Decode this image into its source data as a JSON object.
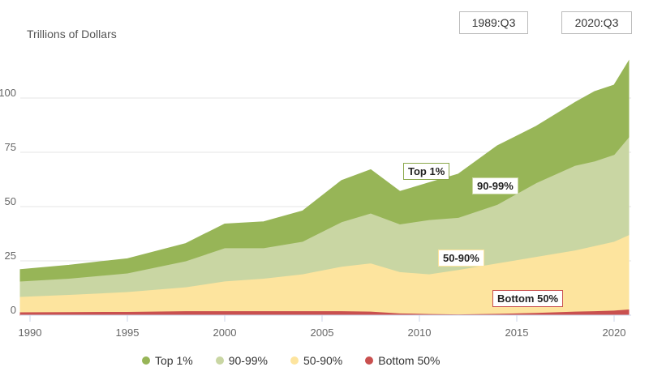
{
  "header": {
    "units_label": "Trillions of Dollars",
    "start_date": "1989:Q3",
    "end_date": "2020:Q3"
  },
  "chart_data": {
    "type": "area",
    "stacked": true,
    "title": "",
    "xlabel": "",
    "ylabel": "Trillions of Dollars",
    "xlim": [
      1989.5,
      2020.75
    ],
    "ylim": [
      0,
      120
    ],
    "x_ticks": [
      1990,
      1995,
      2000,
      2005,
      2010,
      2015,
      2020
    ],
    "y_ticks": [
      0,
      25,
      50,
      75,
      100
    ],
    "grid": true,
    "x": [
      1989.5,
      1992,
      1995,
      1998,
      2000,
      2002,
      2004,
      2006,
      2007.5,
      2009,
      2010.5,
      2012,
      2014,
      2016,
      2018,
      2019,
      2020,
      2020.75
    ],
    "series": [
      {
        "name": "Bottom 50%",
        "color": "#c9504f",
        "values": [
          1.5,
          1.6,
          1.7,
          2,
          2,
          2,
          2,
          2,
          1.8,
          1,
          0.7,
          0.5,
          0.8,
          1.2,
          1.8,
          2,
          2.3,
          2.8
        ]
      },
      {
        "name": "50-90%",
        "color": "#fde49e",
        "values": [
          7.1,
          7.9,
          9.1,
          11,
          13.7,
          15,
          17,
          20.5,
          22.2,
          19,
          18.3,
          20.5,
          23.2,
          25.8,
          28.2,
          30,
          31.7,
          34.2
        ]
      },
      {
        "name": "90-99%",
        "color": "#c9d6a3",
        "values": [
          7.1,
          7.5,
          8.6,
          12,
          15.3,
          14,
          15,
          20.5,
          23,
          22,
          25,
          24,
          27,
          34,
          39,
          39,
          40,
          45
        ]
      },
      {
        "name": "Top 1%",
        "color": "#97b557",
        "values": [
          5.3,
          6,
          6.6,
          8,
          11,
          12,
          14,
          19,
          20,
          15,
          17,
          20,
          27,
          26,
          29,
          32,
          32,
          35
        ]
      }
    ],
    "legend": [
      "Top 1%",
      "90-99%",
      "50-90%",
      "Bottom 50%"
    ],
    "legend_placement": "bottom"
  }
}
